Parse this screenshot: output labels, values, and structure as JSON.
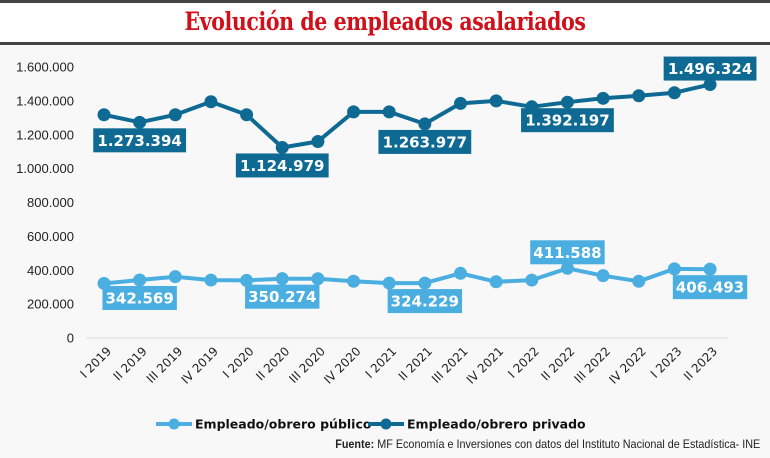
{
  "title": "Evolución de empleados asalariados",
  "source_label": "Fuente:",
  "source_text": " MF Economía e Inversiones con datos del Instituto Nacional de Estadística- INE",
  "colors": {
    "public": "#4aaee0",
    "private": "#0f6a93",
    "title": "#d0101a"
  },
  "chart_data": {
    "type": "line",
    "title": "Evolución de empleados asalariados",
    "xlabel": "",
    "ylabel": "",
    "ylim": [
      0,
      1600000
    ],
    "yticks": [
      0,
      200000,
      400000,
      600000,
      800000,
      1000000,
      1200000,
      1400000,
      1600000
    ],
    "ytick_labels": [
      "0",
      "200.000",
      "400.000",
      "600.000",
      "800.000",
      "1.000.000",
      "1.200.000",
      "1.400.000",
      "1.600.000"
    ],
    "grid": false,
    "legend_position": "bottom",
    "categories": [
      "I 2019",
      "II 2019",
      "III 2019",
      "IV 2019",
      "I 2020",
      "II 2020",
      "III 2020",
      "IV 2020",
      "I 2021",
      "II 2021",
      "III 2021",
      "IV 2021",
      "I 2022",
      "II 2022",
      "III 2022",
      "IV 2022",
      "I 2023",
      "II 2023"
    ],
    "series": [
      {
        "name": "Empleado/obrero público",
        "color": "#4aaee0",
        "values": [
          322000,
          342569,
          362000,
          342000,
          340000,
          350274,
          350000,
          335000,
          324229,
          324229,
          382000,
          332000,
          342000,
          411588,
          368000,
          335000,
          408000,
          406493
        ],
        "labels": [
          {
            "index": 1,
            "text": "342.569",
            "pos": "below"
          },
          {
            "index": 5,
            "text": "350.274",
            "pos": "below"
          },
          {
            "index": 9,
            "text": "324.229",
            "pos": "below"
          },
          {
            "index": 13,
            "text": "411.588",
            "pos": "above"
          },
          {
            "index": 17,
            "text": "406.493",
            "pos": "below"
          }
        ]
      },
      {
        "name": "Empleado/obrero privado",
        "color": "#0f6a93",
        "values": [
          1318000,
          1273394,
          1318000,
          1395000,
          1318000,
          1124979,
          1160000,
          1335000,
          1335000,
          1263977,
          1385000,
          1400000,
          1365000,
          1392197,
          1415000,
          1430000,
          1448000,
          1496324
        ],
        "labels": [
          {
            "index": 1,
            "text": "1.273.394",
            "pos": "below"
          },
          {
            "index": 5,
            "text": "1.124.979",
            "pos": "below"
          },
          {
            "index": 9,
            "text": "1.263.977",
            "pos": "below"
          },
          {
            "index": 13,
            "text": "1.392.197",
            "pos": "below"
          },
          {
            "index": 17,
            "text": "1.496.324",
            "pos": "above"
          }
        ]
      }
    ]
  }
}
